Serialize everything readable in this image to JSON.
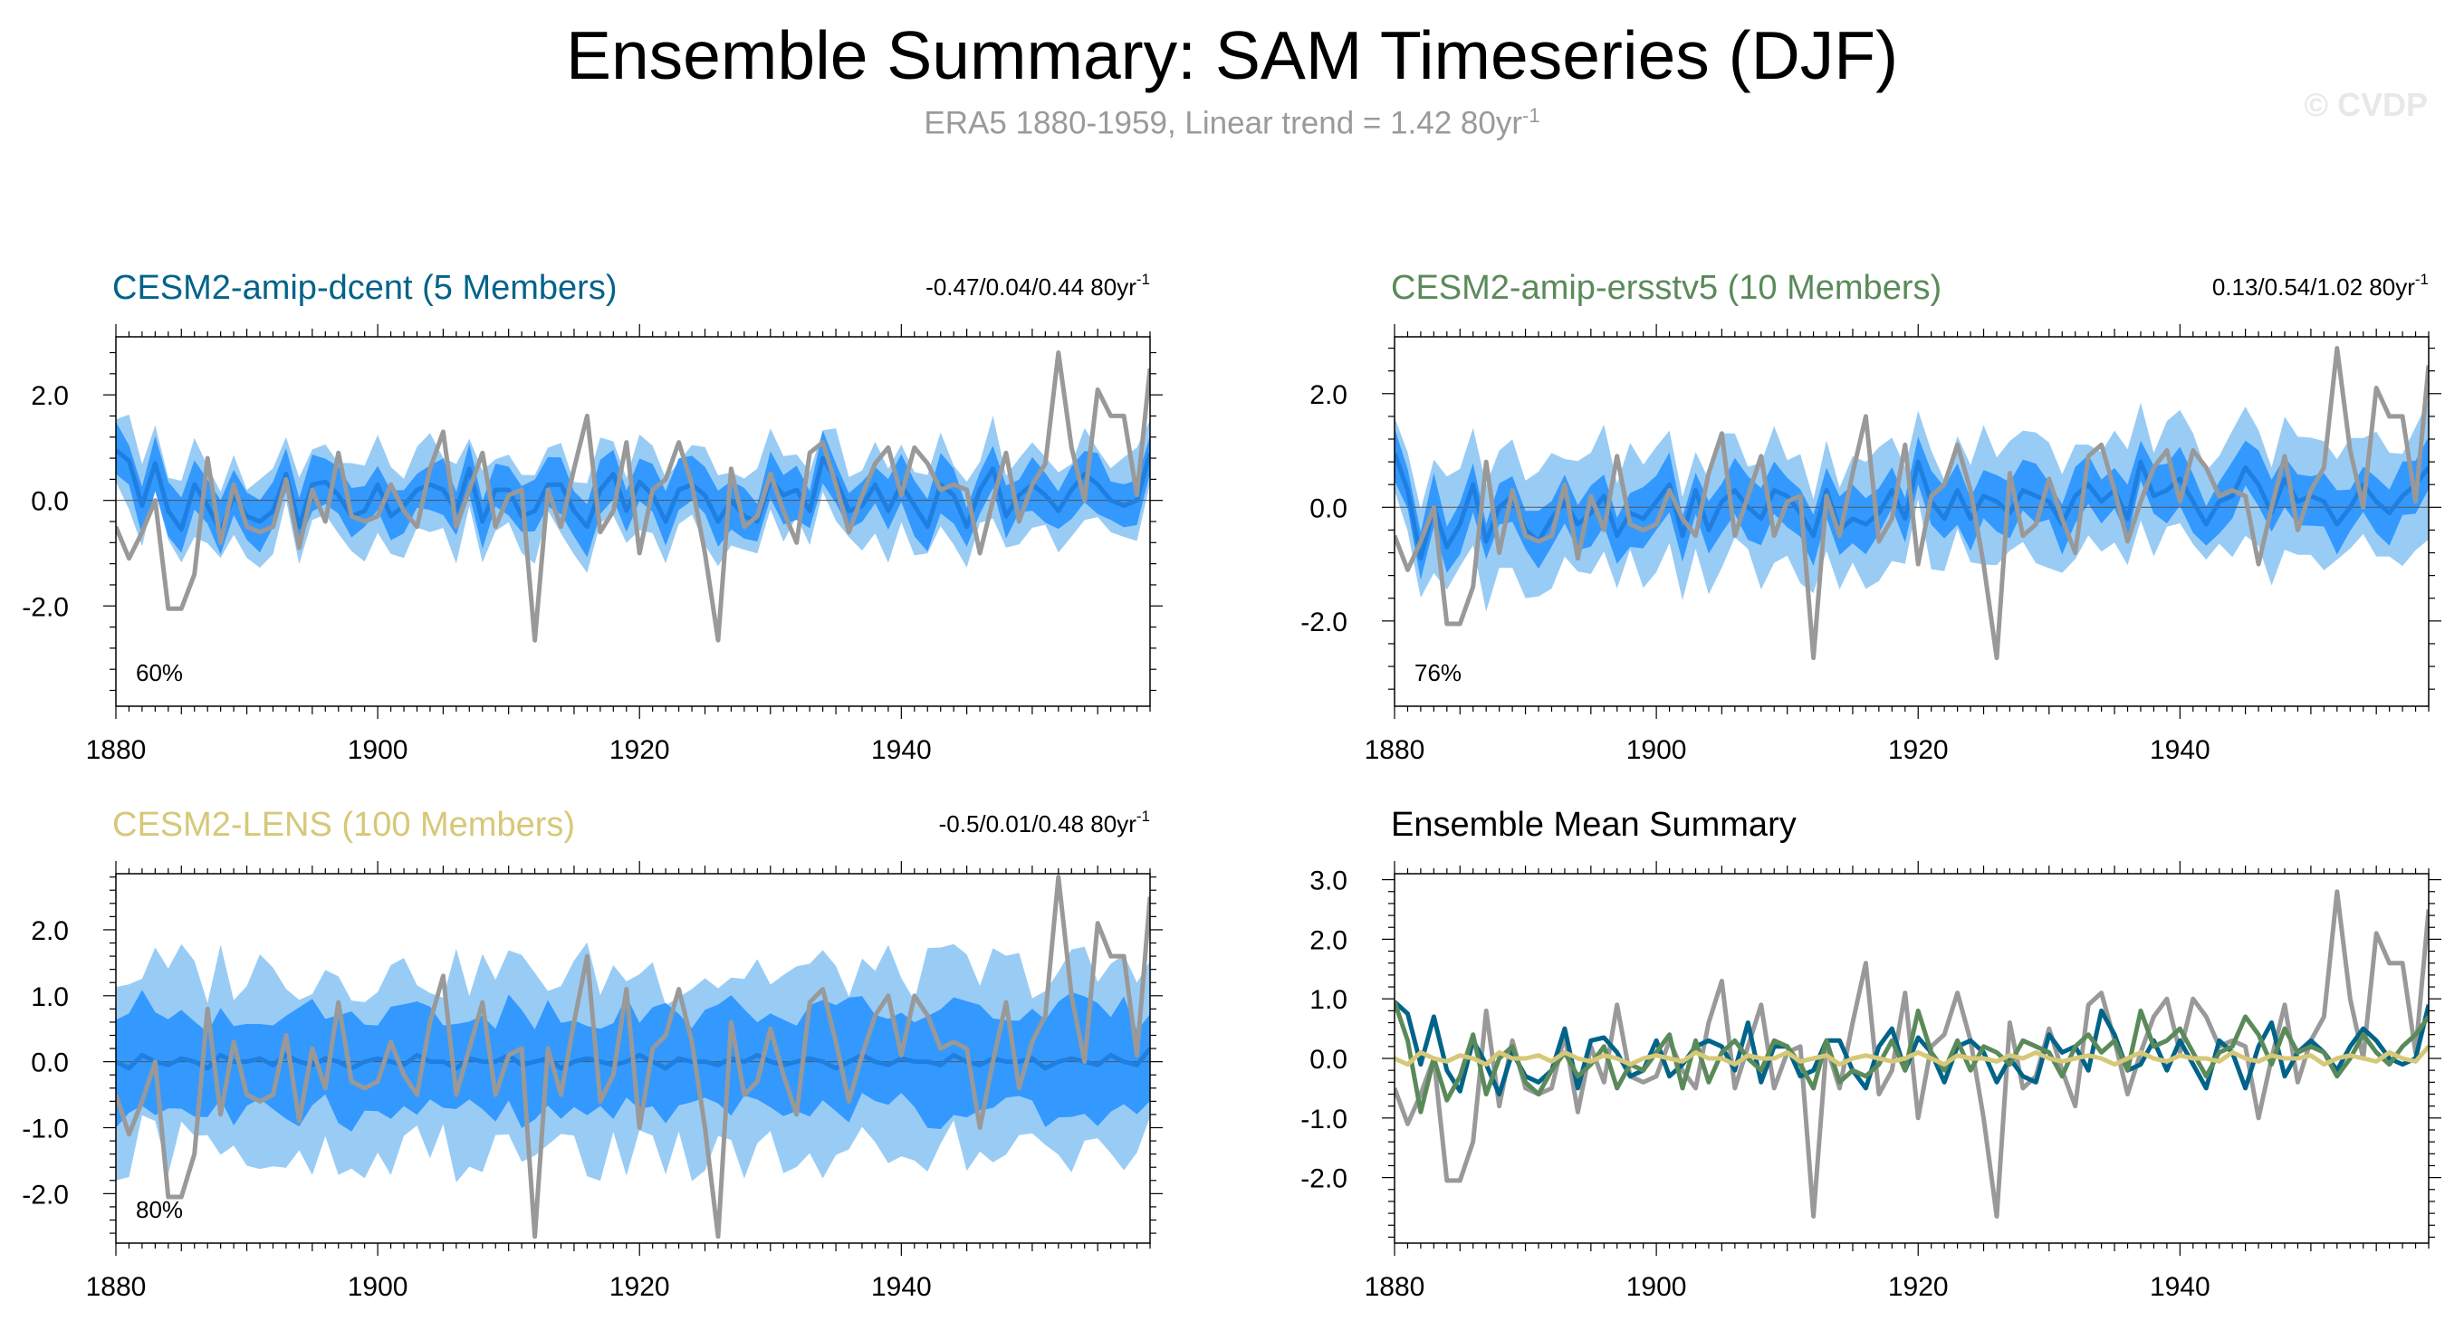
{
  "header": {
    "title": "Ensemble Summary: SAM Timeseries (DJF)",
    "subtitle_main": "ERA5 1880-1959, Linear trend = 1.42 80yr",
    "subtitle_sup": "-1",
    "copyright": "© CVDP"
  },
  "colors": {
    "obs": "#999999",
    "light_band": "#99ccf5",
    "dark_band": "#3399ff",
    "mean_line": "#1f7fe0",
    "dcent": "#006389",
    "ersstv5": "#5a8a5a",
    "lens": "#d6c878"
  },
  "chart_data": [
    {
      "id": "dcent",
      "type": "area",
      "title": "CESM2-amip-dcent (5 Members)",
      "title_color": "#006389",
      "trend_text": "-0.47/0.04/0.44 80yr",
      "trend_sup": "-1",
      "percent_label": "60%",
      "xlim": [
        1880,
        1959
      ],
      "ylim": [
        -3.9,
        3.1
      ],
      "yticks": [
        -2.0,
        0.0,
        2.0
      ],
      "yticklabels": [
        "-2.0",
        "0.0",
        "2.0"
      ],
      "xticks": [
        1880,
        1900,
        1920,
        1940
      ],
      "band_light_half": 0.75,
      "band_dark_half": 0.45,
      "mean": [
        0.95,
        0.75,
        -0.1,
        0.7,
        -0.2,
        -0.55,
        0.3,
        -0.1,
        -0.6,
        0.1,
        -0.3,
        -0.4,
        -0.2,
        0.5,
        -0.5,
        0.3,
        0.35,
        0.1,
        -0.3,
        -0.2,
        0.3,
        -0.3,
        -0.1,
        0.2,
        0.3,
        0.2,
        -0.2,
        0.6,
        -0.4,
        0.2,
        0.2,
        -0.3,
        -0.2,
        0.3,
        0.3,
        -0.2,
        -0.5,
        0.2,
        0.5,
        -0.2,
        0.35,
        0.1,
        -0.4,
        0.2,
        0.3,
        0.1,
        -0.4,
        0.0,
        -0.3,
        -0.4,
        0.4,
        0.1,
        0.2,
        -0.2,
        0.8,
        0.4,
        -0.2,
        -0.1,
        0.3,
        -0.2,
        0.3,
        -0.1,
        -0.5,
        0.3,
        0.1,
        -0.5,
        0.2,
        0.6,
        -0.3,
        0.1,
        0.3,
        0.1,
        -0.2,
        0.2,
        0.5,
        0.3,
        0.0,
        -0.1,
        0.0,
        0.9
      ]
    },
    {
      "id": "ersstv5",
      "type": "area",
      "title": "CESM2-amip-ersstv5 (10 Members)",
      "title_color": "#5a8a5a",
      "trend_text": "0.13/0.54/1.02 80yr",
      "trend_sup": "-1",
      "percent_label": "76%",
      "xlim": [
        1880,
        1959
      ],
      "ylim": [
        -3.5,
        3.0
      ],
      "yticks": [
        -2.0,
        0.0,
        2.0
      ],
      "yticklabels": [
        "-2.0",
        "0.0",
        "2.0"
      ],
      "xticks": [
        1880,
        1900,
        1920,
        1940
      ],
      "band_light_half": 0.95,
      "band_dark_half": 0.45,
      "mean": [
        0.95,
        0.3,
        -0.9,
        0.0,
        -0.7,
        -0.3,
        0.4,
        -0.6,
        0.0,
        0.2,
        -0.4,
        -0.6,
        -0.2,
        0.1,
        -0.3,
        -0.1,
        0.2,
        -0.5,
        -0.1,
        -0.2,
        0.1,
        0.4,
        -0.5,
        0.3,
        -0.4,
        0.1,
        0.3,
        0.0,
        -0.2,
        0.3,
        0.2,
        -0.1,
        -0.5,
        0.3,
        -0.4,
        -0.2,
        -0.3,
        -0.1,
        0.3,
        -0.2,
        0.8,
        0.1,
        -0.2,
        0.3,
        -0.2,
        0.2,
        0.1,
        -0.1,
        0.3,
        0.2,
        0.1,
        -0.3,
        0.2,
        0.4,
        0.1,
        0.3,
        -0.2,
        0.8,
        0.2,
        0.3,
        0.5,
        0.1,
        -0.3,
        0.1,
        0.2,
        0.7,
        0.4,
        -0.1,
        0.5,
        0.1,
        0.2,
        0.1,
        -0.3,
        0.0,
        0.4,
        0.1,
        -0.1,
        0.2,
        0.4,
        0.7
      ]
    },
    {
      "id": "lens",
      "type": "area",
      "title": "CESM2-LENS (100 Members)",
      "title_color": "#d6c878",
      "trend_text": "-0.5/0.01/0.48 80yr",
      "trend_sup": "-1",
      "percent_label": "80%",
      "xlim": [
        1880,
        1959
      ],
      "ylim": [
        -2.75,
        2.85
      ],
      "yticks": [
        -2.0,
        -1.0,
        0.0,
        1.0,
        2.0
      ],
      "yticklabels": [
        "-2.0",
        "-1.0",
        "0.0",
        "1.0",
        "2.0"
      ],
      "xticks": [
        1880,
        1900,
        1920,
        1940
      ],
      "band_light_half": 1.35,
      "band_dark_half": 0.75,
      "mean": [
        0.0,
        -0.1,
        0.1,
        0.0,
        -0.05,
        0.05,
        0.0,
        -0.1,
        0.1,
        0.0,
        0.0,
        0.05,
        -0.05,
        0.1,
        0.0,
        -0.05,
        0.05,
        0.0,
        -0.1,
        0.0,
        0.05,
        0.0,
        -0.05,
        0.1,
        0.0,
        0.0,
        -0.1,
        0.05,
        0.0,
        0.0,
        0.1,
        -0.05,
        0.0,
        0.05,
        -0.1,
        0.0,
        0.05,
        0.0,
        -0.05,
        0.0,
        0.1,
        0.0,
        -0.1,
        0.05,
        0.0,
        0.0,
        -0.05,
        0.05,
        0.0,
        0.1,
        0.0,
        -0.05,
        0.0,
        0.05,
        0.0,
        -0.1,
        0.0,
        0.1,
        0.0,
        -0.05,
        0.05,
        0.0,
        0.0,
        -0.05,
        0.1,
        0.0,
        -0.05,
        0.05,
        0.0,
        0.0,
        0.05,
        -0.1,
        0.0,
        0.05,
        0.0,
        -0.05,
        0.1,
        0.0,
        -0.05,
        0.2
      ]
    },
    {
      "id": "summary",
      "type": "line",
      "title": "Ensemble Mean Summary",
      "title_color": "#000000",
      "xlim": [
        1880,
        1959
      ],
      "ylim": [
        -3.1,
        3.1
      ],
      "yticks": [
        -2.0,
        -1.0,
        0.0,
        1.0,
        2.0,
        3.0
      ],
      "yticklabels": [
        "-2.0",
        "-1.0",
        "0.0",
        "1.0",
        "2.0",
        "3.0"
      ],
      "xticks": [
        1880,
        1900,
        1920,
        1940
      ]
    }
  ],
  "obs_series": {
    "name": "ERA5",
    "start_year": 1880,
    "values": [
      -0.5,
      -1.1,
      -0.6,
      0.0,
      -2.05,
      -2.05,
      -1.4,
      0.8,
      -0.8,
      0.3,
      -0.5,
      -0.6,
      -0.5,
      0.4,
      -0.9,
      0.2,
      -0.4,
      0.9,
      -0.3,
      -0.4,
      -0.3,
      0.3,
      -0.2,
      -0.5,
      0.6,
      1.3,
      -0.5,
      0.2,
      0.9,
      -0.5,
      0.1,
      0.2,
      -2.65,
      0.2,
      -0.5,
      0.6,
      1.6,
      -0.6,
      -0.2,
      1.1,
      -1.0,
      0.2,
      0.4,
      1.1,
      0.3,
      -1.0,
      -2.65,
      0.6,
      -0.5,
      -0.3,
      0.5,
      -0.2,
      -0.8,
      0.9,
      1.1,
      0.3,
      -0.6,
      0.1,
      0.7,
      1.0,
      0.1,
      1.0,
      0.7,
      0.2,
      0.3,
      0.2,
      -1.0,
      0.0,
      0.9,
      -0.4,
      0.3,
      0.7,
      2.8,
      1.0,
      0.0,
      2.1,
      1.6,
      1.6,
      0.1,
      2.5
    ]
  }
}
